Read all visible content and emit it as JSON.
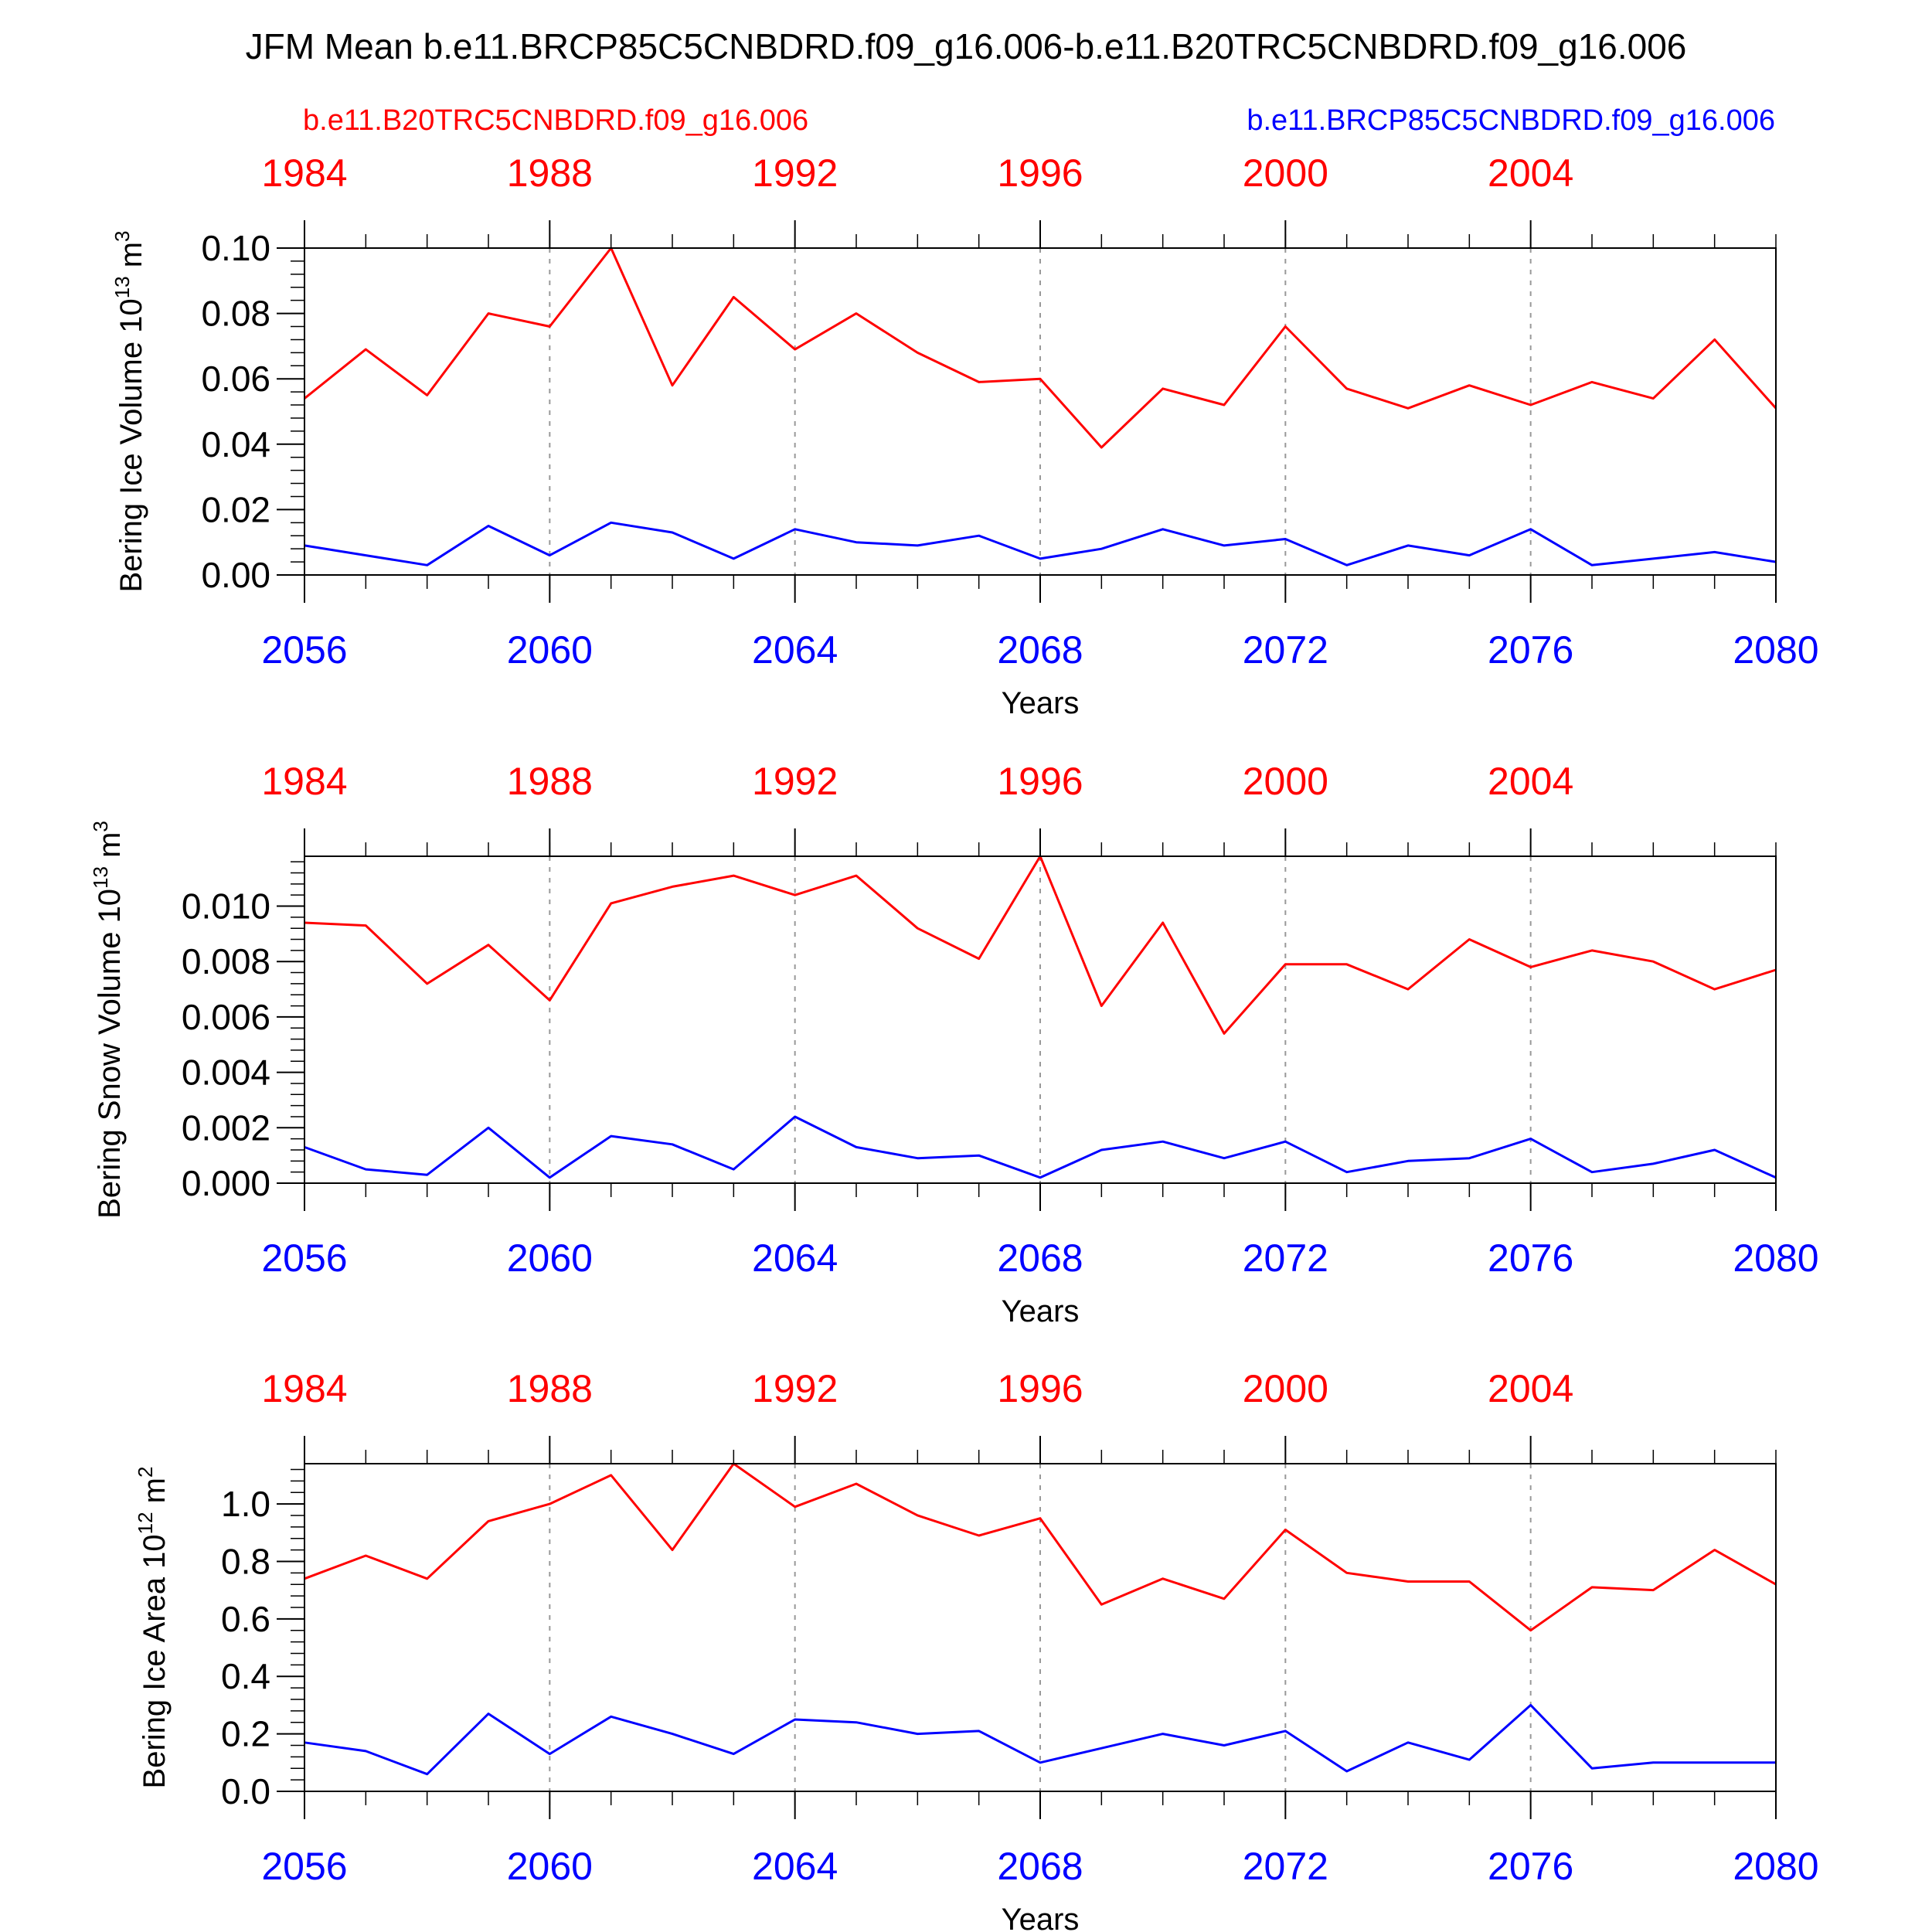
{
  "title": "JFM Mean b.e11.BRCP85C5CNBDRD.f09_g16.006-b.e11.B20TRC5CNBDRD.f09_g16.006",
  "legend": {
    "left_label": "b.e11.B20TRC5CNBDRD.f09_g16.006",
    "right_label": "b.e11.BRCP85C5CNBDRD.f09_g16.006"
  },
  "colors": {
    "hist": "#ff0000",
    "rcp": "#0000ff",
    "axis": "#000000",
    "grid": "#999999"
  },
  "chart_data": [
    {
      "type": "line",
      "ylabel": "Bering Ice Volume 10",
      "ylabel_sup": "13",
      "ylabel_unit": "m",
      "ylabel_unit_sup": "3",
      "xlabel": "Years",
      "ylim": [
        0,
        0.1
      ],
      "yticks": [
        0,
        0.02,
        0.04,
        0.06,
        0.08,
        0.1
      ],
      "ytick_labels": [
        "0.00",
        "0.02",
        "0.04",
        "0.06",
        "0.08",
        "0.10"
      ],
      "yminor_step": 0.004,
      "xlim_bottom": [
        2056,
        2080
      ],
      "xticks_bottom": [
        2056,
        2060,
        2064,
        2068,
        2072,
        2076,
        2080
      ],
      "xticks_top": [
        1984,
        1988,
        1992,
        1996,
        2000,
        2004
      ],
      "x_bottom": [
        2056,
        2057,
        2058,
        2059,
        2060,
        2061,
        2062,
        2063,
        2064,
        2065,
        2066,
        2067,
        2068,
        2069,
        2070,
        2071,
        2072,
        2073,
        2074,
        2075,
        2076,
        2077,
        2078,
        2079,
        2080
      ],
      "series": [
        {
          "values": [
            0.054,
            0.069,
            0.055,
            0.08,
            0.076,
            0.1,
            0.058,
            0.085,
            0.069,
            0.08,
            0.068,
            0.059,
            0.06,
            0.039,
            0.057,
            0.052,
            0.076,
            0.057,
            0.051,
            0.058,
            0.052,
            0.059,
            0.054,
            0.072,
            0.051
          ]
        },
        {
          "values": [
            0.009,
            0.006,
            0.003,
            0.015,
            0.006,
            0.016,
            0.013,
            0.005,
            0.014,
            0.01,
            0.009,
            0.012,
            0.005,
            0.008,
            0.014,
            0.009,
            0.011,
            0.003,
            0.009,
            0.006,
            0.014,
            0.003,
            0.005,
            0.007,
            0.004
          ]
        }
      ]
    },
    {
      "type": "line",
      "ylabel": "Bering Snow Volume 10",
      "ylabel_sup": "13",
      "ylabel_unit": "m",
      "ylabel_unit_sup": "3",
      "xlabel": "Years",
      "ylim": [
        0,
        0.0118
      ],
      "yticks": [
        0,
        0.002,
        0.004,
        0.006,
        0.008,
        0.01
      ],
      "ytick_labels": [
        "0.000",
        "0.002",
        "0.004",
        "0.006",
        "0.008",
        "0.010"
      ],
      "yminor_step": 0.0004,
      "xlim_bottom": [
        2056,
        2080
      ],
      "xticks_bottom": [
        2056,
        2060,
        2064,
        2068,
        2072,
        2076,
        2080
      ],
      "xticks_top": [
        1984,
        1988,
        1992,
        1996,
        2000,
        2004
      ],
      "x_bottom": [
        2056,
        2057,
        2058,
        2059,
        2060,
        2061,
        2062,
        2063,
        2064,
        2065,
        2066,
        2067,
        2068,
        2069,
        2070,
        2071,
        2072,
        2073,
        2074,
        2075,
        2076,
        2077,
        2078,
        2079,
        2080
      ],
      "series": [
        {
          "values": [
            0.0094,
            0.0093,
            0.0072,
            0.0086,
            0.0066,
            0.0101,
            0.0107,
            0.0111,
            0.0104,
            0.0111,
            0.0092,
            0.0081,
            0.0118,
            0.0064,
            0.0094,
            0.0054,
            0.0079,
            0.0079,
            0.007,
            0.0088,
            0.0078,
            0.0084,
            0.008,
            0.007,
            0.0077
          ]
        },
        {
          "values": [
            0.0013,
            0.0005,
            0.0003,
            0.002,
            0.0002,
            0.0017,
            0.0014,
            0.0005,
            0.0024,
            0.0013,
            0.0009,
            0.001,
            0.0002,
            0.0012,
            0.0015,
            0.0009,
            0.0015,
            0.0004,
            0.0008,
            0.0009,
            0.0016,
            0.0004,
            0.0007,
            0.0012,
            0.0002
          ]
        }
      ]
    },
    {
      "type": "line",
      "ylabel": "Bering Ice Area 10",
      "ylabel_sup": "12",
      "ylabel_unit": "m",
      "ylabel_unit_sup": "2",
      "xlabel": "Years",
      "ylim": [
        0,
        1.14
      ],
      "yticks": [
        0,
        0.2,
        0.4,
        0.6,
        0.8,
        1.0
      ],
      "ytick_labels": [
        "0.0",
        "0.2",
        "0.4",
        "0.6",
        "0.8",
        "1.0"
      ],
      "yminor_step": 0.04,
      "xlim_bottom": [
        2056,
        2080
      ],
      "xticks_bottom": [
        2056,
        2060,
        2064,
        2068,
        2072,
        2076,
        2080
      ],
      "xticks_top": [
        1984,
        1988,
        1992,
        1996,
        2000,
        2004
      ],
      "x_bottom": [
        2056,
        2057,
        2058,
        2059,
        2060,
        2061,
        2062,
        2063,
        2064,
        2065,
        2066,
        2067,
        2068,
        2069,
        2070,
        2071,
        2072,
        2073,
        2074,
        2075,
        2076,
        2077,
        2078,
        2079,
        2080
      ],
      "series": [
        {
          "values": [
            0.74,
            0.82,
            0.74,
            0.94,
            1.0,
            1.1,
            0.84,
            1.14,
            0.99,
            1.07,
            0.96,
            0.89,
            0.95,
            0.65,
            0.74,
            0.67,
            0.91,
            0.76,
            0.73,
            0.73,
            0.56,
            0.71,
            0.7,
            0.84,
            0.72
          ]
        },
        {
          "values": [
            0.17,
            0.14,
            0.06,
            0.27,
            0.13,
            0.26,
            0.2,
            0.13,
            0.25,
            0.24,
            0.2,
            0.21,
            0.1,
            0.15,
            0.2,
            0.16,
            0.21,
            0.07,
            0.17,
            0.11,
            0.3,
            0.08,
            0.1,
            0.1,
            0.1
          ]
        }
      ]
    }
  ]
}
